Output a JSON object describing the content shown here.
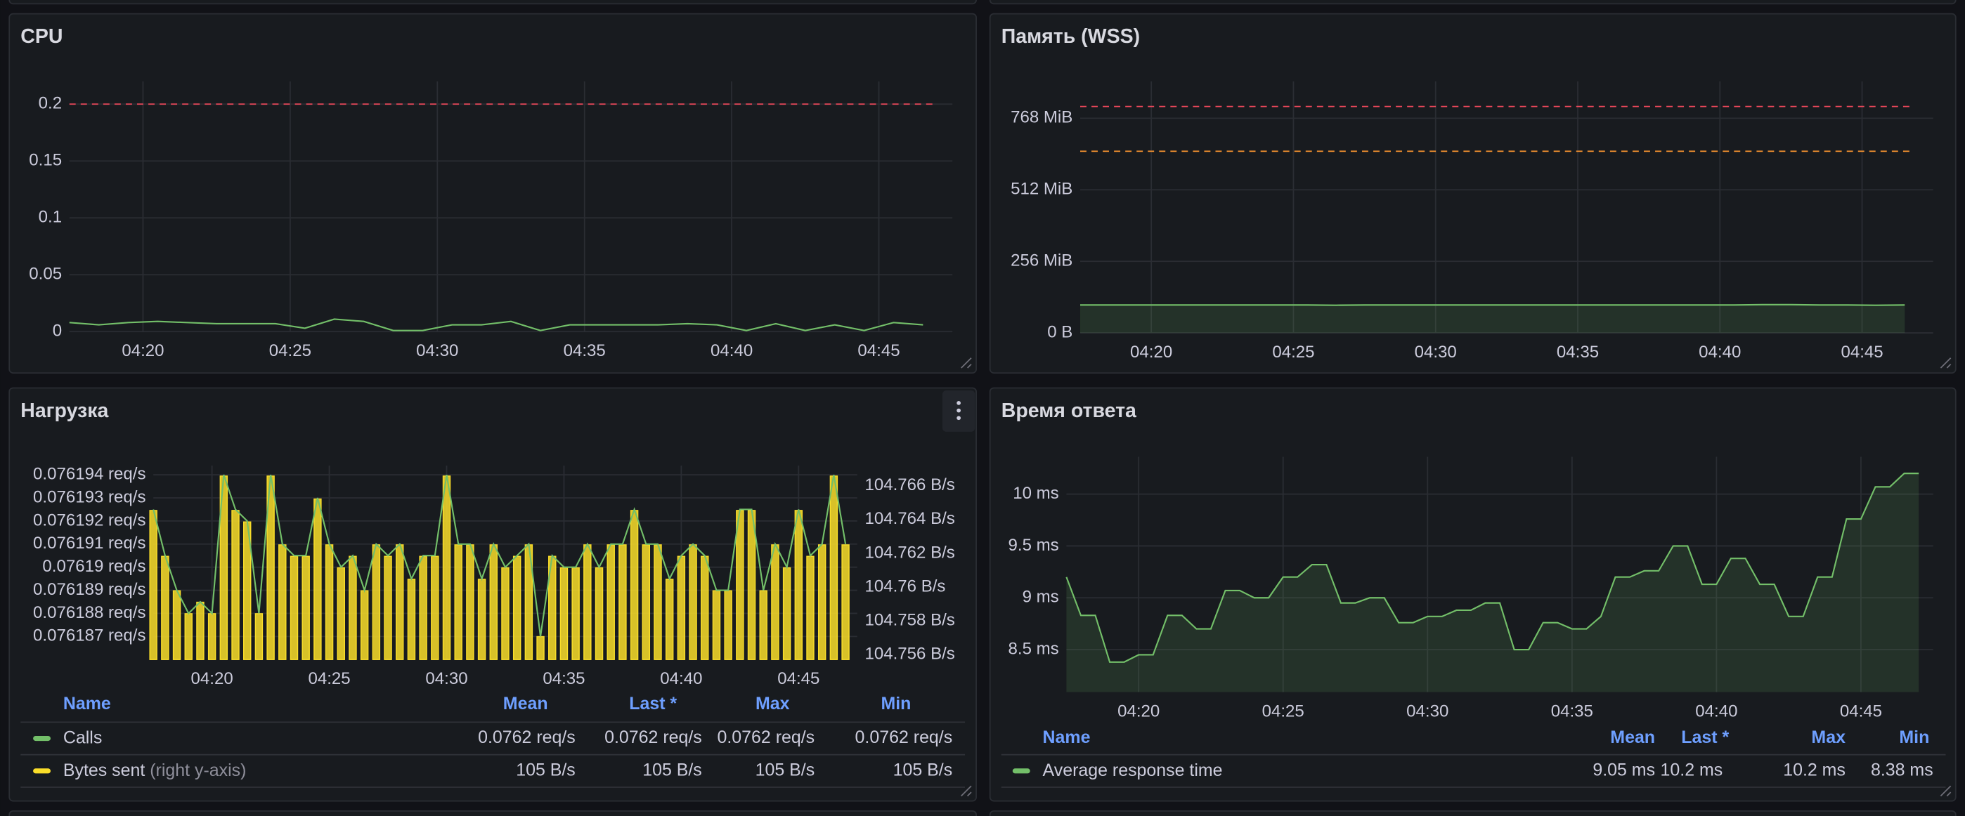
{
  "chart_data": [
    {
      "type": "line",
      "title": "CPU",
      "x": [
        257.5,
        258.5,
        259.5,
        260.5,
        261.5,
        262.5,
        263.5,
        264.5,
        265.5,
        266.5,
        267.5,
        268.5,
        269.5,
        270.5,
        271.5,
        272.5,
        273.5,
        274.5,
        275.5,
        276.5,
        277.5,
        278.5,
        279.5,
        280.5,
        281.5,
        282.5,
        283.5,
        284.5,
        285.5,
        286.5
      ],
      "series": [
        {
          "name": "CPU",
          "color": "#73bf69",
          "values": [
            0.008,
            0.006,
            0.008,
            0.009,
            0.008,
            0.007,
            0.007,
            0.007,
            0.003,
            0.011,
            0.009,
            0.001,
            0.001,
            0.006,
            0.006,
            0.009,
            0.001,
            0.006,
            0.006,
            0.006,
            0.006,
            0.007,
            0.006,
            0.001,
            0.007,
            0.001,
            0.006,
            0.001,
            0.008,
            0.006
          ]
        }
      ],
      "thresholds": [
        {
          "value": 0.2,
          "color": "#f2495c"
        }
      ],
      "xlim": [
        257.5,
        287.5
      ],
      "xticks": [
        {
          "value": 260,
          "label": "04:20"
        },
        {
          "value": 265,
          "label": "04:25"
        },
        {
          "value": 270,
          "label": "04:30"
        },
        {
          "value": 275,
          "label": "04:35"
        },
        {
          "value": 280,
          "label": "04:40"
        },
        {
          "value": 285,
          "label": "04:45"
        }
      ],
      "ylim": [
        0,
        0.22
      ],
      "yticks": [
        0,
        0.05,
        0.1,
        0.15,
        0.2
      ],
      "grid": true
    },
    {
      "type": "area",
      "title": "Память (WSS)",
      "x": [
        257.5,
        258.5,
        259.5,
        260.5,
        261.5,
        262.5,
        263.5,
        264.5,
        265.5,
        266.5,
        267.5,
        268.5,
        269.5,
        270.5,
        271.5,
        272.5,
        273.5,
        274.5,
        275.5,
        276.5,
        277.5,
        278.5,
        279.5,
        280.5,
        281.5,
        282.5,
        283.5,
        284.5,
        285.5,
        286.5
      ],
      "series": [
        {
          "name": "WSS",
          "color": "#73bf69",
          "values": [
            100,
            100,
            100,
            100,
            100,
            100,
            100,
            100,
            100,
            99,
            100,
            100,
            100,
            100,
            100,
            100,
            100,
            100,
            100,
            100,
            100,
            100,
            100,
            100,
            101,
            101,
            100,
            100,
            99,
            100
          ]
        }
      ],
      "thresholds": [
        {
          "value": 810,
          "color": "#f2495c"
        },
        {
          "value": 650,
          "color": "#ff9830"
        }
      ],
      "xlim": [
        257.5,
        287.5
      ],
      "xticks": [
        {
          "value": 260,
          "label": "04:20"
        },
        {
          "value": 265,
          "label": "04:25"
        },
        {
          "value": 270,
          "label": "04:30"
        },
        {
          "value": 275,
          "label": "04:35"
        },
        {
          "value": 280,
          "label": "04:40"
        },
        {
          "value": 285,
          "label": "04:45"
        }
      ],
      "ylim": [
        0,
        900
      ],
      "yticks": [
        {
          "value": 0,
          "label": "0 B"
        },
        {
          "value": 256,
          "label": "256 MiB"
        },
        {
          "value": 512,
          "label": "512 MiB"
        },
        {
          "value": 768,
          "label": "768 MiB"
        }
      ],
      "grid": true
    },
    {
      "type": "combo",
      "title": "Нагрузка",
      "x": [
        257.5,
        258,
        258.5,
        259,
        259.5,
        260,
        260.5,
        261,
        261.5,
        262,
        262.5,
        263,
        263.5,
        264,
        264.5,
        265,
        265.5,
        266,
        266.5,
        267,
        267.5,
        268,
        268.5,
        269,
        269.5,
        270,
        270.5,
        271,
        271.5,
        272,
        272.5,
        273,
        273.5,
        274,
        274.5,
        275,
        275.5,
        276,
        276.5,
        277,
        277.5,
        278,
        278.5,
        279,
        279.5,
        280,
        280.5,
        281,
        281.5,
        282,
        282.5,
        283,
        283.5,
        284,
        284.5,
        285,
        285.5,
        286,
        286.5,
        287
      ],
      "series": [
        {
          "name": "Calls",
          "type": "line",
          "color": "#73bf69",
          "values": [
            0.0761925,
            0.0761905,
            0.076189,
            0.076188,
            0.0761885,
            0.076188,
            0.076194,
            0.0761925,
            0.076192,
            0.076188,
            0.076194,
            0.076191,
            0.0761905,
            0.0761905,
            0.076193,
            0.076191,
            0.07619,
            0.0761905,
            0.076189,
            0.076191,
            0.0761905,
            0.076191,
            0.0761895,
            0.0761905,
            0.0761905,
            0.076194,
            0.076191,
            0.076191,
            0.0761895,
            0.076191,
            0.07619,
            0.0761905,
            0.076191,
            0.076187,
            0.0761905,
            0.07619,
            0.07619,
            0.076191,
            0.07619,
            0.076191,
            0.076191,
            0.0761925,
            0.076191,
            0.076191,
            0.0761895,
            0.0761905,
            0.076191,
            0.0761905,
            0.076189,
            0.076189,
            0.0761925,
            0.0761925,
            0.076189,
            0.076191,
            0.07619,
            0.0761925,
            0.0761905,
            0.076191,
            0.076194,
            0.076191
          ]
        },
        {
          "name": "Bytes sent",
          "legend_suffix": "(right y-axis)",
          "type": "bar",
          "axis": "y2",
          "color": "#fade2a",
          "values": [
            104.76454,
            104.76182,
            104.75978,
            104.75842,
            104.7591,
            104.75842,
            104.76658,
            104.76454,
            104.76386,
            104.75842,
            104.76658,
            104.7625,
            104.76182,
            104.76182,
            104.76522,
            104.7625,
            104.76114,
            104.76182,
            104.75978,
            104.7625,
            104.76182,
            104.7625,
            104.76046,
            104.76182,
            104.76182,
            104.76658,
            104.7625,
            104.7625,
            104.76046,
            104.7625,
            104.76114,
            104.76182,
            104.7625,
            104.75706,
            104.76182,
            104.76114,
            104.76114,
            104.7625,
            104.76114,
            104.7625,
            104.7625,
            104.76454,
            104.7625,
            104.7625,
            104.76046,
            104.76182,
            104.7625,
            104.76182,
            104.75978,
            104.75978,
            104.76454,
            104.76454,
            104.75978,
            104.7625,
            104.76114,
            104.76454,
            104.76182,
            104.7625,
            104.76658,
            104.7625
          ]
        }
      ],
      "xlim": [
        257.5,
        287.5
      ],
      "xticks": [
        {
          "value": 260,
          "label": "04:20"
        },
        {
          "value": 265,
          "label": "04:25"
        },
        {
          "value": 270,
          "label": "04:30"
        },
        {
          "value": 275,
          "label": "04:35"
        },
        {
          "value": 280,
          "label": "04:40"
        },
        {
          "value": 285,
          "label": "04:45"
        }
      ],
      "ylim": [
        0.076186,
        0.0761944
      ],
      "yticks": [
        {
          "value": 0.076187,
          "label": "0.076187 req/s"
        },
        {
          "value": 0.076188,
          "label": "0.076188 req/s"
        },
        {
          "value": 0.076189,
          "label": "0.076189 req/s"
        },
        {
          "value": 0.07619,
          "label": "0.07619 req/s"
        },
        {
          "value": 0.076191,
          "label": "0.076191 req/s"
        },
        {
          "value": 0.076192,
          "label": "0.076192 req/s"
        },
        {
          "value": 0.076193,
          "label": "0.076193 req/s"
        },
        {
          "value": 0.076194,
          "label": "0.076194 req/s"
        }
      ],
      "y2lim": [
        104.7557,
        104.7672
      ],
      "y2ticks": [
        {
          "value": 104.756,
          "label": "104.756 B/s"
        },
        {
          "value": 104.758,
          "label": "104.758 B/s"
        },
        {
          "value": 104.76,
          "label": "104.76 B/s"
        },
        {
          "value": 104.762,
          "label": "104.762 B/s"
        },
        {
          "value": 104.764,
          "label": "104.764 B/s"
        },
        {
          "value": 104.766,
          "label": "104.766 B/s"
        }
      ],
      "grid": true,
      "legend": {
        "columns": [
          "Name",
          "Mean",
          "Last *",
          "Max",
          "Min"
        ],
        "rows": [
          [
            "0.0762 req/s",
            "0.0762 req/s",
            "0.0762 req/s",
            "0.0762 req/s"
          ],
          [
            "105 B/s",
            "105 B/s",
            "105 B/s",
            "105 B/s"
          ]
        ]
      }
    },
    {
      "type": "area",
      "title": "Время ответа",
      "x": [
        257.5,
        258,
        258.5,
        259,
        259.5,
        260,
        260.5,
        261,
        261.5,
        262,
        262.5,
        263,
        263.5,
        264,
        264.5,
        265,
        265.5,
        266,
        266.5,
        267,
        267.5,
        268,
        268.5,
        269,
        269.5,
        270,
        270.5,
        271,
        271.5,
        272,
        272.5,
        273,
        273.5,
        274,
        274.5,
        275,
        275.5,
        276,
        276.5,
        277,
        277.5,
        278,
        278.5,
        279,
        279.5,
        280,
        280.5,
        281,
        281.5,
        282,
        282.5,
        283,
        283.5,
        284,
        284.5,
        285,
        285.5,
        286,
        286.5,
        287
      ],
      "series": [
        {
          "name": "Average response time",
          "color": "#73bf69",
          "values": [
            9.2,
            8.83,
            8.83,
            8.38,
            8.38,
            8.45,
            8.45,
            8.83,
            8.83,
            8.7,
            8.7,
            9.07,
            9.07,
            9.0,
            9.0,
            9.2,
            9.2,
            9.32,
            9.32,
            8.95,
            8.95,
            9.0,
            9.0,
            8.76,
            8.76,
            8.82,
            8.82,
            8.88,
            8.88,
            8.95,
            8.95,
            8.5,
            8.5,
            8.76,
            8.76,
            8.7,
            8.7,
            8.82,
            9.2,
            9.2,
            9.26,
            9.26,
            9.5,
            9.5,
            9.13,
            9.13,
            9.38,
            9.38,
            9.13,
            9.13,
            8.82,
            8.82,
            9.2,
            9.2,
            9.76,
            9.76,
            10.07,
            10.07,
            10.2,
            10.2
          ]
        }
      ],
      "xlim": [
        257.5,
        287.5
      ],
      "xticks": [
        {
          "value": 260,
          "label": "04:20"
        },
        {
          "value": 265,
          "label": "04:25"
        },
        {
          "value": 270,
          "label": "04:30"
        },
        {
          "value": 275,
          "label": "04:35"
        },
        {
          "value": 280,
          "label": "04:40"
        },
        {
          "value": 285,
          "label": "04:45"
        }
      ],
      "ylim": [
        8.09,
        10.36
      ],
      "yticks": [
        {
          "value": 8.5,
          "label": "8.5 ms"
        },
        {
          "value": 9,
          "label": "9 ms"
        },
        {
          "value": 9.5,
          "label": "9.5 ms"
        },
        {
          "value": 10,
          "label": "10 ms"
        }
      ],
      "grid": true,
      "legend": {
        "columns": [
          "Name",
          "Mean",
          "Last *",
          "Max",
          "Min"
        ],
        "rows": [
          [
            "9.05 ms",
            "10.2 ms",
            "10.2 ms",
            "8.38 ms"
          ]
        ]
      }
    }
  ]
}
